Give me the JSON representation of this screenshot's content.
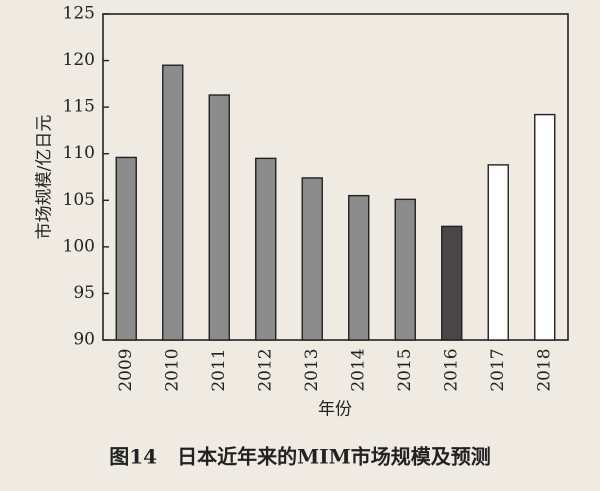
{
  "chart_data": {
    "type": "bar",
    "title": "图14　日本近年来的MIM市场规模及预测",
    "x_label": "年份",
    "y_label": "市场规模/亿日元",
    "categories": [
      "2009",
      "2010",
      "2011",
      "2012",
      "2013",
      "2014",
      "2015",
      "2016",
      "2017",
      "2018"
    ],
    "values": [
      109.6,
      119.5,
      116.3,
      109.5,
      107.4,
      105.5,
      105.1,
      102.2,
      108.8,
      114.2
    ],
    "colors": [
      "#8c8c8c",
      "#8c8c8c",
      "#8c8c8c",
      "#8c8c8c",
      "#8c8c8c",
      "#8c8c8c",
      "#8c8c8c",
      "#4a4546",
      "#ffffff",
      "#ffffff"
    ],
    "ylim": [
      90,
      125
    ],
    "yticks": [
      90,
      95,
      100,
      105,
      110,
      115,
      120,
      125
    ],
    "grid": false
  }
}
